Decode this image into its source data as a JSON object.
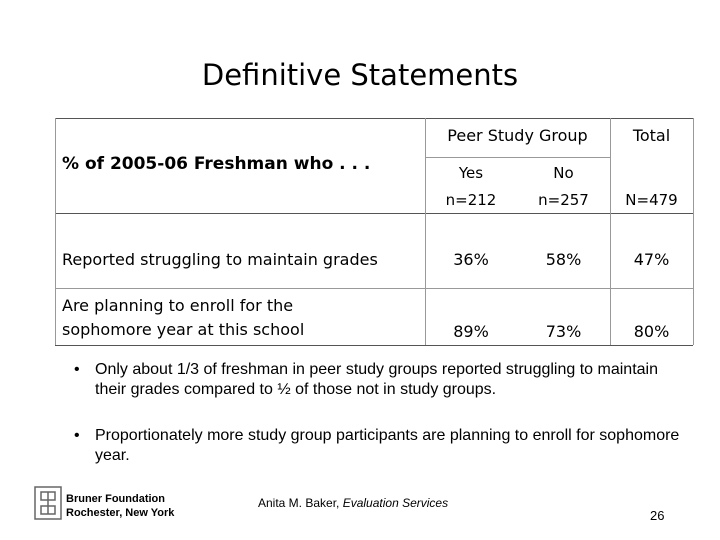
{
  "title": "Definitive Statements",
  "table": {
    "row_header": "% of 2005-06 Freshman who . . .",
    "group_header": "Peer Study Group",
    "total_header": "Total",
    "subheaders": [
      [
        "Yes",
        "n=212"
      ],
      [
        "No",
        "n=257"
      ],
      [
        "",
        "N=479"
      ]
    ],
    "rows": [
      [
        "Reported struggling to maintain grades",
        "36%",
        "58%",
        "47%"
      ],
      [
        "Are planning to enroll for the sophomore year at this school",
        "89%",
        "73%",
        "80%"
      ]
    ]
  },
  "bullets": [
    "Only about 1/3 of freshman in peer study groups reported struggling to maintain their grades compared to ½ of those not in study groups.",
    "Proportionately more study group participants are planning to enroll for sophomore year."
  ],
  "footer": {
    "org": [
      "Bruner Foundation",
      "Rochester, New York"
    ],
    "author": "Anita M. Baker, ",
    "author_org": "Evaluation Services",
    "page": "26"
  }
}
